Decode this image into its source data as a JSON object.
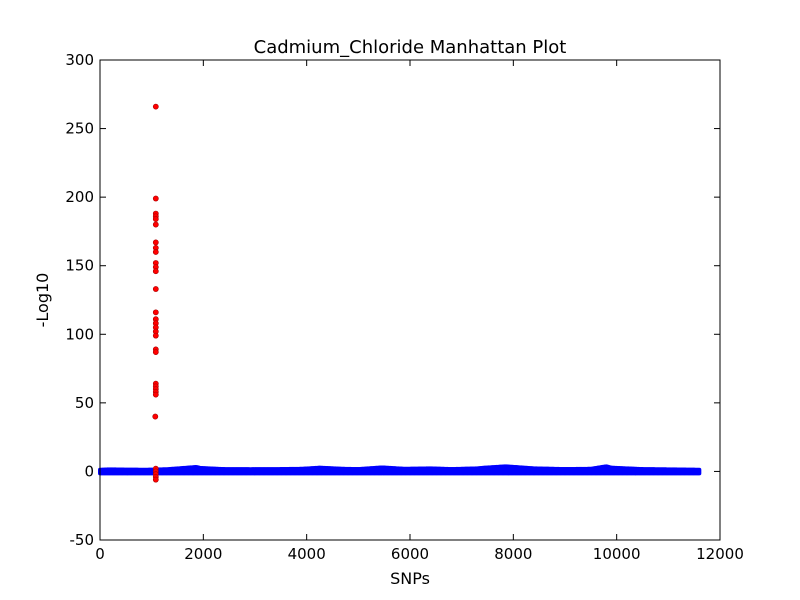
{
  "chart_data": {
    "type": "scatter",
    "title": "Cadmium_Chloride Manhattan Plot",
    "xlabel": "SNPs",
    "ylabel": "-Log10",
    "xlim": [
      0,
      12000
    ],
    "ylim": [
      -50,
      300
    ],
    "xticks": [
      0,
      2000,
      4000,
      6000,
      8000,
      10000,
      12000
    ],
    "yticks": [
      -50,
      0,
      50,
      100,
      150,
      200,
      250,
      300
    ],
    "grid": false,
    "colors": {
      "baseline": "#0000ff",
      "significant": "#ff0000"
    },
    "series": [
      {
        "color": "#0000ff",
        "x_range": [
          0,
          11600
        ],
        "baseline_points": [
          [
            0,
            0.5
          ],
          [
            200,
            0.8
          ],
          [
            500,
            0.6
          ],
          [
            900,
            0.5
          ],
          [
            1300,
            0.9
          ],
          [
            1860,
            2.5
          ],
          [
            1950,
            1.8
          ],
          [
            2100,
            1.5
          ],
          [
            2400,
            1.0
          ],
          [
            2900,
            0.9
          ],
          [
            3500,
            1.0
          ],
          [
            3900,
            1.2
          ],
          [
            4250,
            2.0
          ],
          [
            4700,
            1.2
          ],
          [
            5000,
            1.0
          ],
          [
            5460,
            2.2
          ],
          [
            5900,
            1.2
          ],
          [
            6400,
            1.5
          ],
          [
            6800,
            1.0
          ],
          [
            7300,
            1.5
          ],
          [
            7450,
            2.0
          ],
          [
            7850,
            3.0
          ],
          [
            8400,
            1.5
          ],
          [
            9000,
            1.0
          ],
          [
            9500,
            1.2
          ],
          [
            9800,
            3.0
          ],
          [
            9900,
            2.0
          ],
          [
            10500,
            1.0
          ],
          [
            11000,
            0.8
          ],
          [
            11600,
            0.5
          ]
        ]
      },
      {
        "color": "#ff0000",
        "points": [
          [
            1080,
            266
          ],
          [
            1080,
            199
          ],
          [
            1080,
            188
          ],
          [
            1080,
            186
          ],
          [
            1080,
            184
          ],
          [
            1080,
            180
          ],
          [
            1080,
            167
          ],
          [
            1080,
            163
          ],
          [
            1080,
            160
          ],
          [
            1080,
            152
          ],
          [
            1080,
            149
          ],
          [
            1080,
            146
          ],
          [
            1080,
            133
          ],
          [
            1080,
            116
          ],
          [
            1080,
            111
          ],
          [
            1080,
            108
          ],
          [
            1080,
            105
          ],
          [
            1080,
            102
          ],
          [
            1080,
            99
          ],
          [
            1080,
            89
          ],
          [
            1080,
            87
          ],
          [
            1080,
            64
          ],
          [
            1080,
            62
          ],
          [
            1080,
            60
          ],
          [
            1080,
            58
          ],
          [
            1080,
            56
          ],
          [
            1070,
            40
          ],
          [
            1080,
            2
          ],
          [
            1080,
            0
          ],
          [
            1080,
            -2
          ],
          [
            1080,
            -4
          ],
          [
            1080,
            -6
          ]
        ]
      }
    ]
  }
}
